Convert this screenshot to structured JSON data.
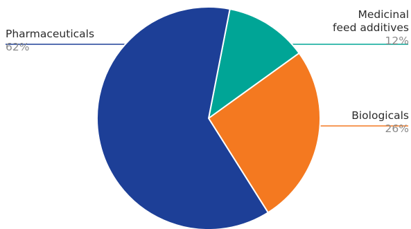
{
  "chart_data": {
    "type": "pie",
    "title": "",
    "slices": [
      {
        "label": "Pharmaceuticals",
        "value": 62,
        "value_label": "62%",
        "color": "#1d3f97"
      },
      {
        "label": "Medicinal feed additives",
        "label_lines": [
          "Medicinal",
          "feed additives"
        ],
        "value": 12,
        "value_label": "12%",
        "color": "#00a596"
      },
      {
        "label": "Biologicals",
        "value": 26,
        "value_label": "26%",
        "color": "#f47920"
      }
    ],
    "leader_line_colors": {
      "Pharmaceuticals": "#1d3f97",
      "Medicinal feed additives": "#00a596",
      "Biologicals": "#f47920"
    }
  }
}
